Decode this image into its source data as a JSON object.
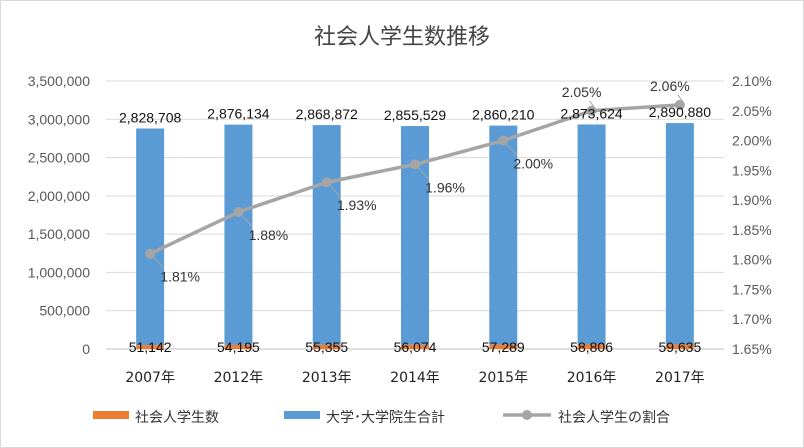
{
  "chart_data": {
    "type": "bar",
    "title": "社会人学生数推移",
    "categories": [
      "2007年",
      "2012年",
      "2013年",
      "2014年",
      "2015年",
      "2016年",
      "2017年"
    ],
    "series": [
      {
        "name": "社会人学生数",
        "type": "bar",
        "axis": "left",
        "color": "#ED7D31",
        "values": [
          51142,
          54195,
          55355,
          56074,
          57289,
          58806,
          59635
        ],
        "labels": [
          "51,142",
          "54,195",
          "55,355",
          "56,074",
          "57,289",
          "58,806",
          "59,635"
        ]
      },
      {
        "name": "大学･大学院生合計",
        "type": "bar",
        "axis": "left",
        "color": "#5B9BD5",
        "values": [
          2828708,
          2876134,
          2868872,
          2855529,
          2860210,
          2873624,
          2890880
        ],
        "labels": [
          "2,828,708",
          "2,876,134",
          "2,868,872",
          "2,855,529",
          "2,860,210",
          "2,873,624",
          "2,890,880"
        ]
      },
      {
        "name": "社会人学生の割合",
        "type": "line",
        "axis": "right",
        "color": "#A5A5A5",
        "values": [
          1.81,
          1.88,
          1.93,
          1.96,
          2.0,
          2.05,
          2.06
        ],
        "labels": [
          "1.81%",
          "1.88%",
          "1.93%",
          "1.96%",
          "2.00%",
          "2.05%",
          "2.06%"
        ]
      }
    ],
    "y_left": {
      "min": 0,
      "max": 3500000,
      "ticks": [
        "0",
        "500,000",
        "1,000,000",
        "1,500,000",
        "2,000,000",
        "2,500,000",
        "3,000,000",
        "3,500,000"
      ]
    },
    "y_right": {
      "min": 1.65,
      "max": 2.1,
      "ticks": [
        "1.65%",
        "1.70%",
        "1.75%",
        "1.80%",
        "1.85%",
        "1.90%",
        "1.95%",
        "2.00%",
        "2.05%",
        "2.10%"
      ]
    },
    "grid": true,
    "legend": "bottom"
  }
}
